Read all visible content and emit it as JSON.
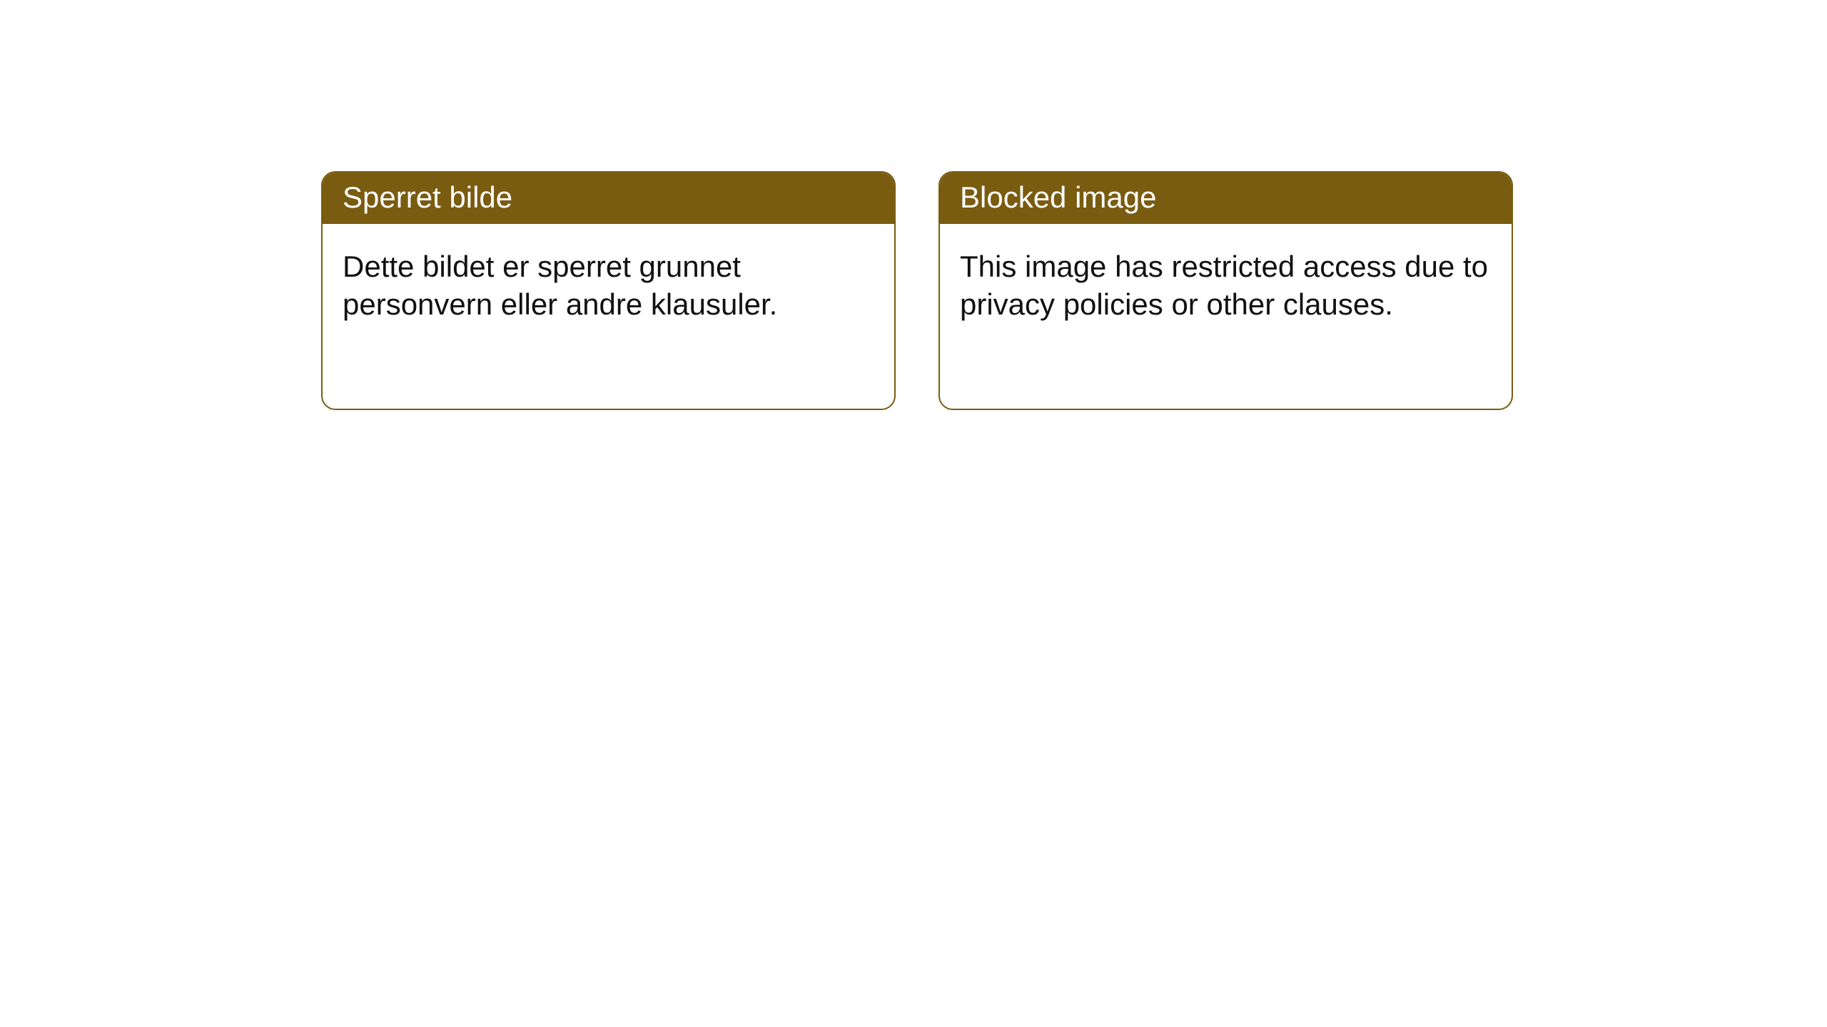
{
  "page": {
    "background_color": "#ffffff",
    "card_border_color": "#7a5c10",
    "card_border_radius": 20,
    "header_bg_color": "#7a5c10",
    "header_text_color": "#ffffff",
    "body_text_color": "#111111",
    "title_fontsize": 42,
    "body_fontsize": 42
  },
  "cards": [
    {
      "title": "Sperret bilde",
      "body": "Dette bildet er sperret grunnet personvern eller andre klausuler."
    },
    {
      "title": "Blocked image",
      "body": "This image has restricted access due to privacy policies or other clauses."
    }
  ]
}
